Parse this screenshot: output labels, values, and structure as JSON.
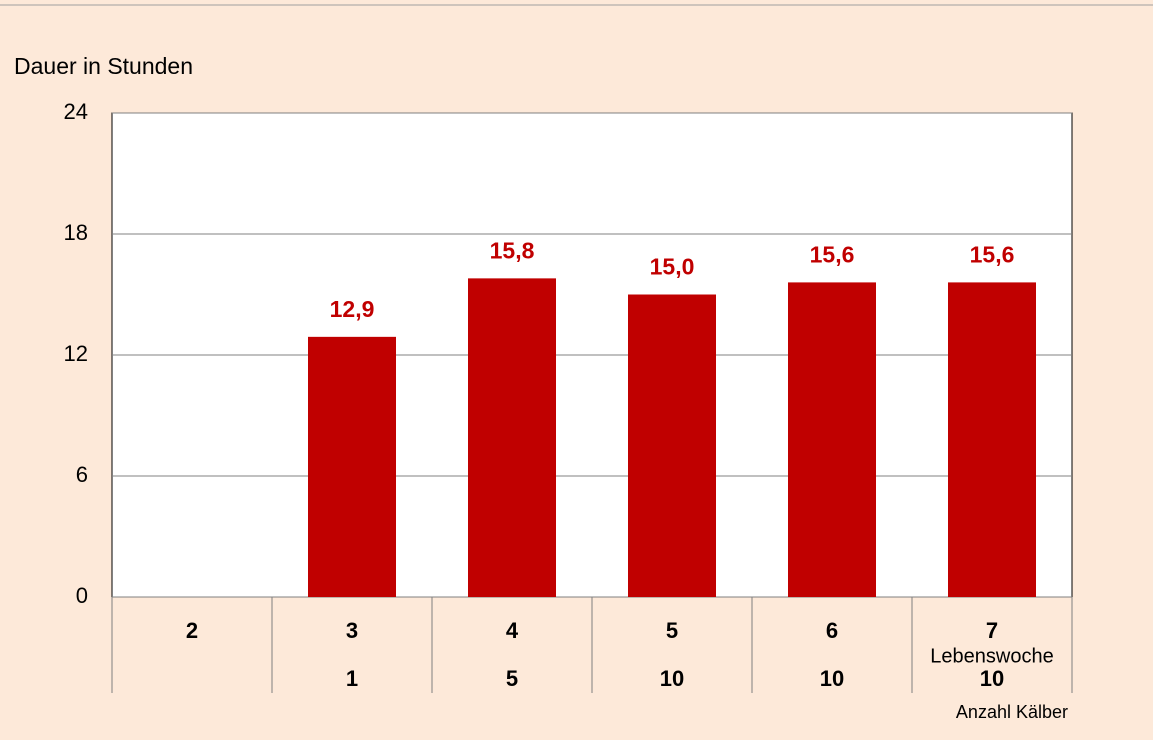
{
  "chart_data": {
    "type": "bar",
    "y_label": "Dauer in Stunden",
    "x_label": "Lebenswoche",
    "count_label": "Anzahl Kälber",
    "categories": [
      "2",
      "3",
      "4",
      "5",
      "6",
      "7"
    ],
    "values": [
      null,
      12.9,
      15.8,
      15.0,
      15.6,
      15.6
    ],
    "value_labels": [
      null,
      "12,9",
      "15,8",
      "15,0",
      "15,6",
      "15,6"
    ],
    "counts": [
      null,
      1,
      5,
      10,
      10,
      10
    ],
    "color": "#c00000",
    "ylim": [
      0,
      24
    ],
    "yticks": [
      0,
      6,
      12,
      18,
      24
    ],
    "grid": true
  }
}
